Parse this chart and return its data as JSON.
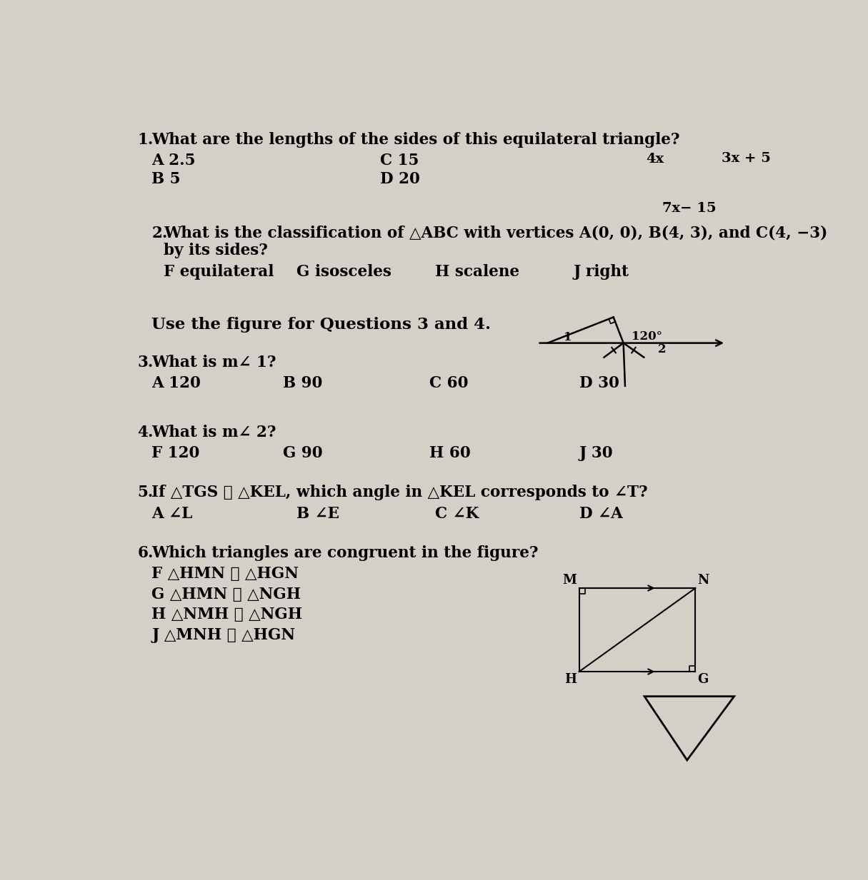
{
  "bg_color": "#d4d0c8",
  "text_color": "#000000",
  "q1_question": "What are the lengths of the sides of this equilateral triangle?",
  "q1_choices": [
    [
      "A",
      "2.5"
    ],
    [
      "B",
      "5"
    ],
    [
      "C",
      "15"
    ],
    [
      "D",
      "20"
    ]
  ],
  "tri_left_label": "4x",
  "tri_right_label": "3x + 5",
  "tri_bottom_label": "7x − 15",
  "q2_question": "What is the classification of △ABC with vertices A(0, 0), B(4, 3), and C(4, −3)",
  "q2_line2": "by its sides?",
  "q2_choices": [
    [
      "F",
      "equilateral"
    ],
    [
      "G",
      "isosceles"
    ],
    [
      "H",
      "scalene"
    ],
    [
      "J",
      "right"
    ]
  ],
  "q34_header": "Use the figure for Questions 3 and 4.",
  "angle_120": "120°",
  "q3_question": "What is m∠ 1?",
  "q3_choices": [
    [
      "A",
      "120"
    ],
    [
      "B",
      "90"
    ],
    [
      "C",
      "60"
    ],
    [
      "D",
      "30"
    ]
  ],
  "q4_question": "What is m∠ 2?",
  "q4_choices": [
    [
      "F",
      "120"
    ],
    [
      "G",
      "90"
    ],
    [
      "H",
      "60"
    ],
    [
      "J",
      "30"
    ]
  ],
  "q5_question": "If △TGS ≅ △KEL, which angle in △KEL corresponds to ∠T?",
  "q5_choices": [
    [
      "A",
      "∠L"
    ],
    [
      "B",
      "∠E"
    ],
    [
      "C",
      "∠K"
    ],
    [
      "D",
      "∠A"
    ]
  ],
  "q6_question": "Which triangles are congruent in the figure?",
  "q6_choices": [
    [
      "F",
      "△HMN ≅ △HGN"
    ],
    [
      "G",
      "△HMN ≅ △NGH"
    ],
    [
      "H",
      "△NMH ≅ △NGH"
    ],
    [
      "J",
      "△MNH ≅ △HGN"
    ]
  ]
}
